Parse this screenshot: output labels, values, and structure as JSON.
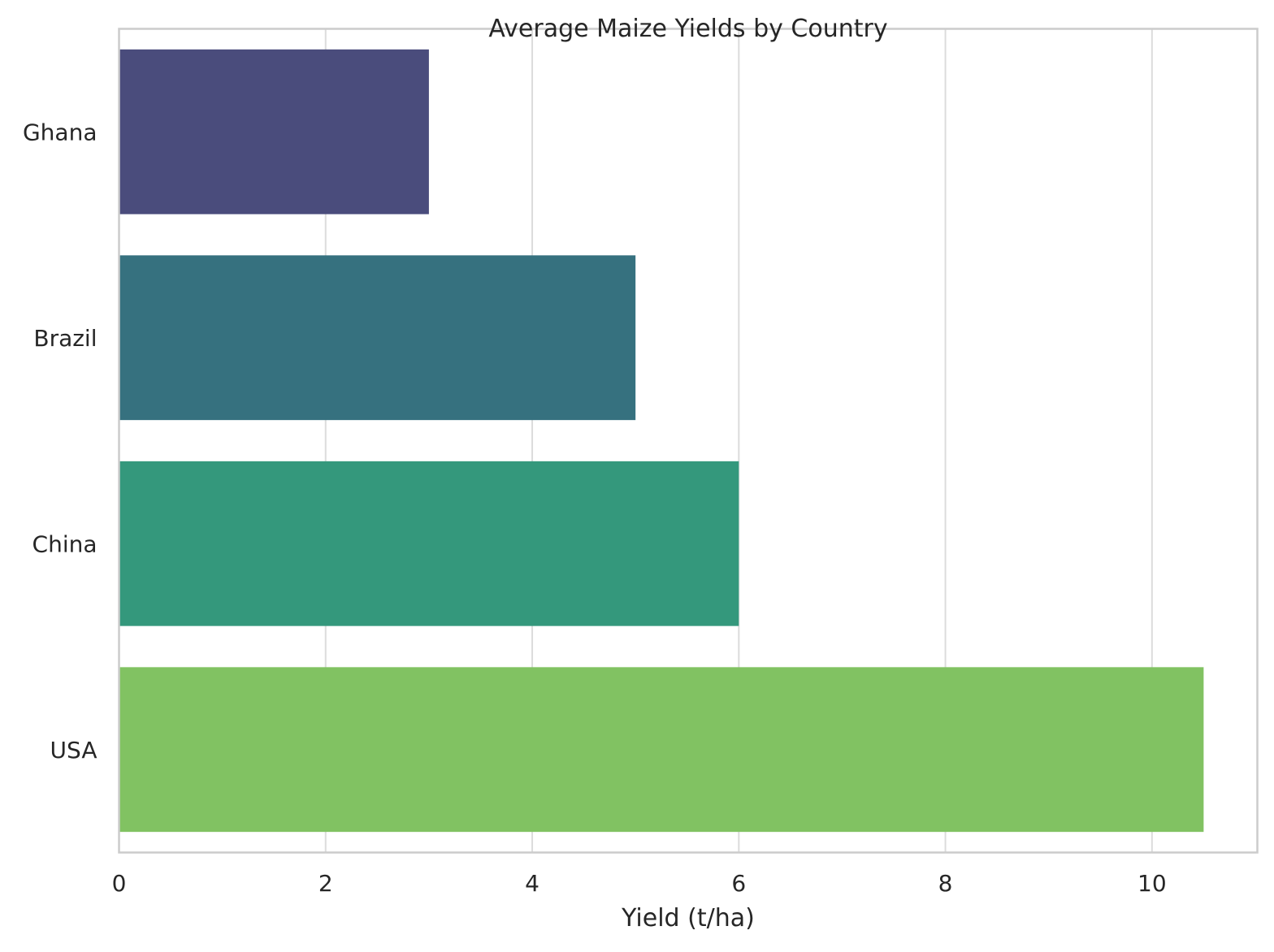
{
  "chart_data": {
    "type": "bar",
    "orientation": "horizontal",
    "title": "Average Maize Yields by Country",
    "xlabel": "Yield (t/ha)",
    "ylabel": "",
    "categories": [
      "Ghana",
      "Brazil",
      "China",
      "USA"
    ],
    "values": [
      3,
      5,
      6,
      10.5
    ],
    "colors": [
      "#4a4c7c",
      "#36717f",
      "#34987c",
      "#81c262"
    ],
    "xlim": [
      0,
      11.02
    ],
    "xticks": [
      0,
      2,
      4,
      6,
      8,
      10
    ],
    "xtick_labels": [
      "0",
      "2",
      "4",
      "6",
      "8",
      "10"
    ],
    "grid": true,
    "legend": "none"
  }
}
